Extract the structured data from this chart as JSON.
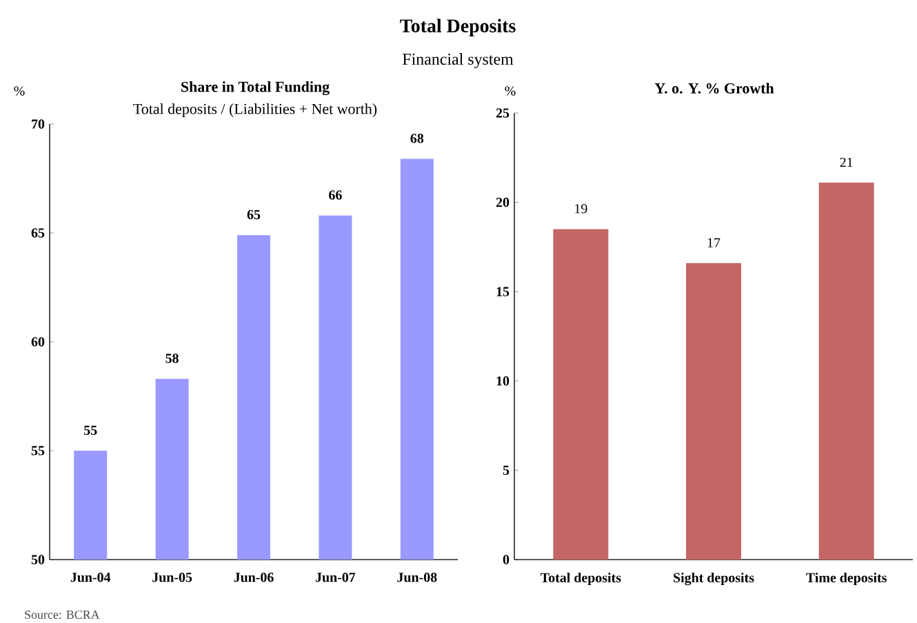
{
  "chart_data": [
    {
      "type": "other",
      "title": "Total Deposits",
      "subtitle": "Financial system"
    },
    {
      "type": "bar",
      "title": "Share in Total Funding",
      "subtitle": "Total deposits / (Liabilities + Net worth)",
      "ylabel": "%",
      "categories": [
        "Jun-04",
        "Jun-05",
        "Jun-06",
        "Jun-07",
        "Jun-08"
      ],
      "values": [
        55.0,
        58.3,
        64.9,
        65.8,
        68.4
      ],
      "value_labels": [
        "55",
        "58",
        "65",
        "66",
        "68"
      ],
      "color": "#9999ff",
      "ylim": [
        50,
        70
      ],
      "yticks": [
        50,
        55,
        60,
        65,
        70
      ],
      "annotations": [
        "Source: BCRA"
      ]
    },
    {
      "type": "bar",
      "title": "Y. o. Y. % Growth",
      "ylabel": "%",
      "categories": [
        "Total deposits",
        "Sight deposits",
        "Time deposits"
      ],
      "values": [
        18.5,
        16.6,
        21.1
      ],
      "value_labels": [
        "19",
        "17",
        "21"
      ],
      "color": "#c46666",
      "ylim": [
        0,
        25
      ],
      "yticks": [
        0,
        5,
        10,
        15,
        20,
        25
      ]
    }
  ]
}
